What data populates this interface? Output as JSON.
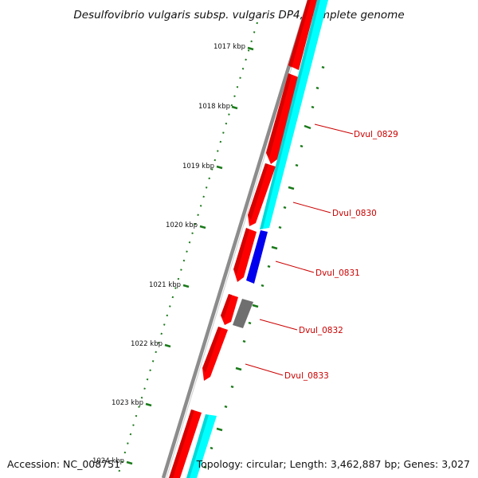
{
  "title": "Desulfovibrio vulgaris subsp. vulgaris DP4, complete genome",
  "footer": {
    "accession": "Accession: NC_008751",
    "topology": "Topology: circular; Length: 3,462,887 bp; Genes: 3,027"
  },
  "ruler_labels": [
    "1017 kbp",
    "1018 kbp",
    "1019 kbp",
    "1020 kbp",
    "1021 kbp",
    "1022 kbp",
    "1023 kbp",
    "1024 kbp"
  ],
  "gene_labels": [
    "Dvul_0829",
    "Dvul_0830",
    "Dvul_0831",
    "Dvul_0832",
    "Dvul_0833"
  ],
  "colors": {
    "backbone": "#8c8c8c",
    "cds": "#ff0000",
    "rna": "#00ffff",
    "other": "#0000ff",
    "gray_feature": "#666666",
    "ticks": "#1a7a1a",
    "label": "#cc0000"
  }
}
